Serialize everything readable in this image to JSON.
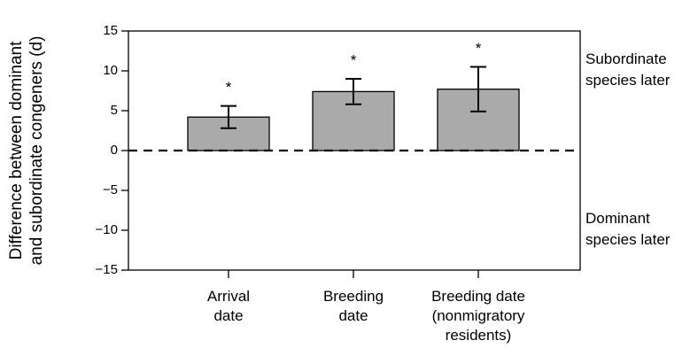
{
  "chart_data": {
    "type": "bar",
    "y_label": [
      "Difference between dominant",
      "and subordinate congeners (d)"
    ],
    "categories": [
      [
        "Arrival",
        "date"
      ],
      [
        "Breeding",
        "date"
      ],
      [
        "Breeding date",
        "(nonmigratory",
        "residents)"
      ]
    ],
    "series": [
      {
        "color": "#aaaaaa",
        "values": [
          4.2,
          7.4,
          7.7
        ],
        "errors": [
          1.4,
          1.6,
          2.8
        ]
      }
    ],
    "annotations": [
      "*",
      "*",
      "*"
    ],
    "right_labels": [
      {
        "value": 10,
        "lines": [
          "Subordinate",
          "species later"
        ]
      },
      {
        "value": -10,
        "lines": [
          "Dominant",
          "species later"
        ]
      }
    ],
    "ylim": [
      -15,
      15
    ],
    "yticks": [
      15,
      10,
      5,
      0,
      {
        "value": -5,
        "label": "−5"
      },
      {
        "value": -10,
        "label": "−10"
      },
      {
        "value": -15,
        "label": "−15"
      }
    ],
    "zero_line": "dashed"
  }
}
